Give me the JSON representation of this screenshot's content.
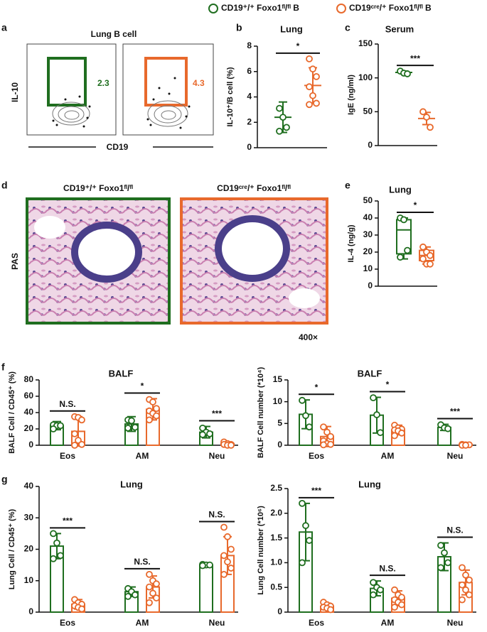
{
  "legend": [
    {
      "name": "CD19⁺/⁺ Foxo1ᶠˡ/ᶠˡ B",
      "color": "#1f6e1f"
    },
    {
      "name": "CD19ᶜʳᵉ/⁺ Foxo1ᶠˡ/ᶠˡ B",
      "color": "#e8692c"
    }
  ],
  "panel_labels": [
    "a",
    "b",
    "c",
    "d",
    "e",
    "f",
    "g"
  ],
  "flow": {
    "title": "Lung B cell",
    "y_label": "IL-10",
    "x_label": "CD19",
    "gates": [
      2.3,
      4.3
    ]
  },
  "histology": {
    "captions": [
      "CD19⁺/⁺ Foxo1ᶠˡ/ᶠˡ",
      "CD19ᶜʳᵉ/⁺ Foxo1ᶠˡ/ᶠˡ"
    ],
    "stain": "PAS",
    "magnification": "400×"
  },
  "chart_data": [
    {
      "type": "dot",
      "title": "Lung",
      "y_label": "IL-10⁺/B cell (%)",
      "categories": [
        null
      ],
      "ylim": [
        0,
        8
      ],
      "yticks": [
        0,
        2,
        4,
        6,
        8
      ],
      "significance": [
        "*"
      ],
      "series": [
        {
          "color": "#1f6e1f",
          "values": [
            2.4
          ],
          "errors": [
            1.2
          ],
          "points": [
            [
              3.1,
              2.4,
              1.6,
              1.3
            ]
          ]
        },
        {
          "color": "#e8692c",
          "values": [
            4.9
          ],
          "errors": [
            1.4
          ],
          "points": [
            [
              7.0,
              6.2,
              5.6,
              4.8,
              4.1,
              3.5,
              3.4
            ]
          ]
        }
      ]
    },
    {
      "type": "dot",
      "title": "Serum",
      "y_label": "IgE (ng/ml)",
      "categories": [
        null
      ],
      "ylim": [
        0,
        150
      ],
      "yticks": [
        0,
        50,
        100,
        150
      ],
      "significance": [
        "***"
      ],
      "series": [
        {
          "color": "#1f6e1f",
          "values": [
            108
          ],
          "errors": [
            2
          ],
          "points": [
            [
              110,
              107,
              106
            ]
          ]
        },
        {
          "color": "#e8692c",
          "values": [
            40
          ],
          "errors": [
            9
          ],
          "points": [
            [
              50,
              42,
              27
            ]
          ]
        }
      ]
    },
    {
      "type": "box",
      "title": "Lung",
      "y_label": "IL-4 (ng/g)",
      "categories": [
        null
      ],
      "ylim": [
        0,
        50
      ],
      "yticks": [
        0,
        10,
        20,
        30,
        40,
        50
      ],
      "significance": [
        "*"
      ],
      "series": [
        {
          "color": "#1f6e1f",
          "box": [
            [
              16,
              19,
              33,
              39,
              40
            ]
          ],
          "points": [
            [
              40,
              39,
              21,
              17
            ]
          ]
        },
        {
          "color": "#e8692c",
          "box": [
            [
              13,
              15,
              18,
              21,
              23
            ]
          ],
          "points": [
            [
              23,
              20,
              18,
              16,
              13,
              13
            ]
          ]
        }
      ]
    },
    {
      "type": "bar",
      "title": "BALF",
      "y_label": "BALF Cell / CD45⁺ (%)",
      "categories": [
        "Eos",
        "AM",
        "Neu"
      ],
      "ylim": [
        0,
        80
      ],
      "yticks": [
        0,
        20,
        40,
        60,
        80
      ],
      "significance": [
        "N.S.",
        "*",
        "***"
      ],
      "series": [
        {
          "color": "#1f6e1f",
          "values": [
            24,
            26,
            16
          ],
          "errors": [
            5,
            9,
            7
          ],
          "points": [
            [
              25,
              24,
              24,
              20
            ],
            [
              31,
              30,
              22,
              21
            ],
            [
              21,
              16,
              14,
              13
            ]
          ]
        },
        {
          "color": "#e8692c",
          "values": [
            17,
            44,
            2
          ],
          "errors": [
            18,
            13,
            2
          ],
          "points": [
            [
              35,
              34,
              31,
              14,
              6,
              1,
              0
            ],
            [
              56,
              53,
              45,
              42,
              39,
              36,
              31
            ],
            [
              4,
              2,
              1,
              1,
              0,
              0
            ]
          ]
        }
      ]
    },
    {
      "type": "bar",
      "title": "BALF",
      "y_label": "BALF Cell number (*10⁴)",
      "categories": [
        "Eos",
        "AM",
        "Neu"
      ],
      "ylim": [
        0,
        15
      ],
      "yticks": [
        0,
        5,
        10,
        15
      ],
      "significance": [
        "*",
        "*",
        "***"
      ],
      "series": [
        {
          "color": "#1f6e1f",
          "values": [
            7.1,
            6.9,
            4.1
          ],
          "errors": [
            3.3,
            4.1,
            0.7
          ],
          "points": [
            [
              10.3,
              6.8,
              4.2
            ],
            [
              10.9,
              7.0,
              2.9
            ],
            [
              4.7,
              4.0,
              3.8
            ]
          ]
        },
        {
          "color": "#e8692c",
          "values": [
            2.0,
            3.5,
            0.1
          ],
          "errors": [
            2.3,
            1.1,
            0.1
          ],
          "points": [
            [
              4.2,
              3.0,
              2.0,
              1.0,
              0.4,
              0.2,
              0.1
            ],
            [
              4.6,
              4.0,
              3.7,
              3.5,
              3.3,
              2.8,
              2.2
            ],
            [
              0.2,
              0.1,
              0.1,
              0.0,
              0.0
            ]
          ]
        }
      ]
    },
    {
      "type": "bar",
      "title": "Lung",
      "y_label": "Lung Cell / CD45⁺ (%)",
      "categories": [
        "Eos",
        "AM",
        "Neu"
      ],
      "ylim": [
        0,
        40
      ],
      "yticks": [
        0,
        10,
        20,
        30,
        40
      ],
      "significance": [
        "***",
        "N.S.",
        "N.S."
      ],
      "series": [
        {
          "color": "#1f6e1f",
          "values": [
            21,
            6.5,
            15
          ],
          "errors": [
            4,
            1.5,
            0.4
          ],
          "points": [
            [
              25,
              22,
              18,
              17
            ],
            [
              7.5,
              6.5,
              5.5,
              5
            ],
            [
              15.2,
              15,
              15,
              14.8
            ]
          ]
        },
        {
          "color": "#e8692c",
          "values": [
            2.5,
            8,
            18
          ],
          "errors": [
            1.5,
            3.5,
            6
          ],
          "points": [
            [
              4,
              3,
              2.5,
              2,
              1.5,
              1
            ],
            [
              12,
              10,
              9,
              8,
              6,
              4.5,
              3
            ],
            [
              27,
              24,
              20,
              18,
              16,
              14,
              12
            ]
          ]
        }
      ]
    },
    {
      "type": "bar",
      "title": "Lung",
      "y_label": "Lung Cell number (*10⁶)",
      "categories": [
        "Eos",
        "AM",
        "Neu"
      ],
      "ylim": [
        0,
        2.5
      ],
      "yticks": [
        0,
        0.5,
        {
          "value": 1,
          "label": "1.0"
        },
        1.5,
        {
          "value": 2,
          "label": "2.0"
        },
        2.5
      ],
      "significance": [
        "***",
        "N.S.",
        "N.S."
      ],
      "series": [
        {
          "color": "#1f6e1f",
          "values": [
            1.62,
            0.48,
            1.12
          ],
          "errors": [
            0.58,
            0.15,
            0.28
          ],
          "points": [
            [
              2.2,
              1.75,
              1.45,
              1.0
            ],
            [
              0.6,
              0.5,
              0.45,
              0.35
            ],
            [
              1.35,
              1.2,
              1.0,
              0.9
            ]
          ]
        },
        {
          "color": "#e8692c",
          "values": [
            0.12,
            0.28,
            0.6
          ],
          "errors": [
            0.06,
            0.15,
            0.25
          ],
          "points": [
            [
              0.2,
              0.15,
              0.12,
              0.1,
              0.08,
              0.05
            ],
            [
              0.45,
              0.35,
              0.3,
              0.25,
              0.2,
              0.15,
              0.1
            ],
            [
              0.9,
              0.75,
              0.65,
              0.55,
              0.45,
              0.35,
              0.25
            ]
          ]
        }
      ]
    }
  ]
}
